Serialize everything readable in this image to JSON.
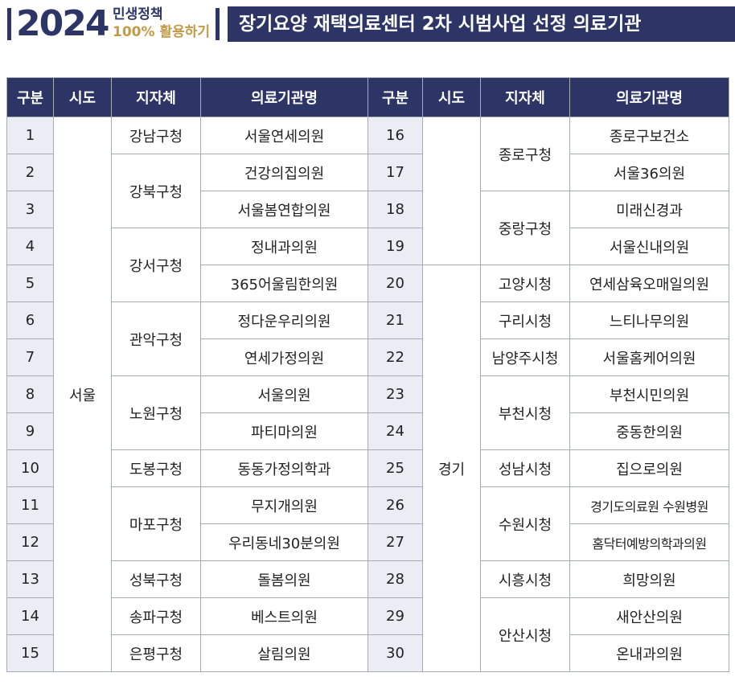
{
  "header": {
    "year": "2024",
    "tag_line1": "민생정책",
    "tag_line2": "100% 활용하기",
    "title": "장기요양 재택의료센터 2차 시범사업 선정 의료기관"
  },
  "columns": [
    "구분",
    "시도",
    "지자체",
    "의료기관명",
    "구분",
    "시도",
    "지자체",
    "의료기관명"
  ],
  "left": {
    "sido": "서울",
    "districts": [
      {
        "name": "강남구청",
        "span": 1
      },
      {
        "name": "강북구청",
        "span": 2
      },
      {
        "name": "강서구청",
        "span": 2
      },
      {
        "name": "관악구청",
        "span": 2
      },
      {
        "name": "노원구청",
        "span": 2
      },
      {
        "name": "도봉구청",
        "span": 1
      },
      {
        "name": "마포구청",
        "span": 2
      },
      {
        "name": "성북구청",
        "span": 1
      },
      {
        "name": "송파구청",
        "span": 1
      },
      {
        "name": "은평구청",
        "span": 1
      }
    ],
    "rows": [
      {
        "no": "1",
        "name": "서울연세의원"
      },
      {
        "no": "2",
        "name": "건강의집의원"
      },
      {
        "no": "3",
        "name": "서울봄연합의원"
      },
      {
        "no": "4",
        "name": "정내과의원"
      },
      {
        "no": "5",
        "name": "365어울림한의원"
      },
      {
        "no": "6",
        "name": "정다운우리의원"
      },
      {
        "no": "7",
        "name": "연세가정의원"
      },
      {
        "no": "8",
        "name": "서울의원"
      },
      {
        "no": "9",
        "name": "파티마의원"
      },
      {
        "no": "10",
        "name": "동동가정의학과"
      },
      {
        "no": "11",
        "name": "무지개의원"
      },
      {
        "no": "12",
        "name": "우리동네30분의원"
      },
      {
        "no": "13",
        "name": "돌봄의원"
      },
      {
        "no": "14",
        "name": "베스트의원"
      },
      {
        "no": "15",
        "name": "살림의원"
      }
    ]
  },
  "right": {
    "sido_groups": [
      {
        "name": "",
        "span": 4
      },
      {
        "name": "경기",
        "span": 11
      }
    ],
    "districts": [
      {
        "name": "종로구청",
        "span": 2
      },
      {
        "name": "중랑구청",
        "span": 2
      },
      {
        "name": "고양시청",
        "span": 1
      },
      {
        "name": "구리시청",
        "span": 1
      },
      {
        "name": "남양주시청",
        "span": 1
      },
      {
        "name": "부천시청",
        "span": 2
      },
      {
        "name": "성남시청",
        "span": 1
      },
      {
        "name": "수원시청",
        "span": 2
      },
      {
        "name": "시흥시청",
        "span": 1
      },
      {
        "name": "안산시청",
        "span": 2
      }
    ],
    "rows": [
      {
        "no": "16",
        "name": "종로구보건소"
      },
      {
        "no": "17",
        "name": "서울36의원"
      },
      {
        "no": "18",
        "name": "미래신경과"
      },
      {
        "no": "19",
        "name": "서울신내의원"
      },
      {
        "no": "20",
        "name": "연세삼육오매일의원"
      },
      {
        "no": "21",
        "name": "느티나무의원"
      },
      {
        "no": "22",
        "name": "서울홈케어의원"
      },
      {
        "no": "23",
        "name": "부천시민의원"
      },
      {
        "no": "24",
        "name": "중동한의원"
      },
      {
        "no": "25",
        "name": "집으로의원"
      },
      {
        "no": "26",
        "name": "경기도의료원 수원병원"
      },
      {
        "no": "27",
        "name": "홈닥터예방의학과의원"
      },
      {
        "no": "28",
        "name": "희망의원"
      },
      {
        "no": "29",
        "name": "새안산의원"
      },
      {
        "no": "30",
        "name": "온내과의원"
      }
    ]
  }
}
